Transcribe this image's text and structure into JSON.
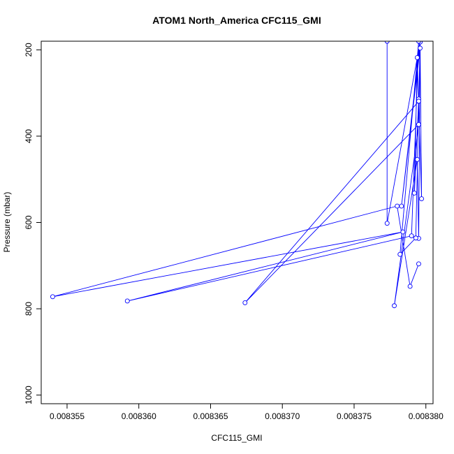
{
  "chart_data": {
    "type": "line",
    "title": "ATOM1 North_America CFC115_GMI",
    "xlabel": "CFC115_GMI",
    "ylabel": "Pressure (mbar)",
    "xlim": [
      0.0083532,
      0.0083805
    ],
    "ylim": [
      1020,
      180
    ],
    "y_reversed": true,
    "x_ticks": [
      0.008355,
      0.00836,
      0.008365,
      0.00837,
      0.008375,
      0.00838
    ],
    "x_tick_labels": [
      "0.008355",
      "0.008360",
      "0.008365",
      "0.008370",
      "0.008375",
      "0.008380"
    ],
    "y_ticks": [
      200,
      400,
      600,
      800,
      1000
    ],
    "y_tick_labels": [
      "200",
      "400",
      "600",
      "800",
      "1000"
    ],
    "grid": false,
    "series_color": "#0000ff",
    "series": [
      {
        "points": [
          {
            "x": 0.0083773,
            "y": 180
          },
          {
            "x": 0.0083773,
            "y": 602
          },
          {
            "x": 0.0083796,
            "y": 182
          },
          {
            "x": 0.0083783,
            "y": 562
          },
          {
            "x": 0.0083796,
            "y": 196
          },
          {
            "x": 0.0083797,
            "y": 545
          },
          {
            "x": 0.0083794,
            "y": 218
          },
          {
            "x": 0.0083792,
            "y": 532
          },
          {
            "x": 0.0083795,
            "y": 314
          },
          {
            "x": 0.0083795,
            "y": 319
          },
          {
            "x": 0.0083674,
            "y": 786
          },
          {
            "x": 0.0083795,
            "y": 373
          },
          {
            "x": 0.0083778,
            "y": 793
          },
          {
            "x": 0.0083794,
            "y": 454
          },
          {
            "x": 0.0083795,
            "y": 637
          },
          {
            "x": 0.0083796,
            "y": 182
          },
          {
            "x": 0.0083793,
            "y": 636
          },
          {
            "x": 0.0083782,
            "y": 674
          },
          {
            "x": 0.0083795,
            "y": 180
          },
          {
            "x": 0.008379,
            "y": 631
          },
          {
            "x": 0.0083592,
            "y": 782
          },
          {
            "x": 0.0083784,
            "y": 622
          },
          {
            "x": 0.008354,
            "y": 772
          },
          {
            "x": 0.008378,
            "y": 562
          },
          {
            "x": 0.0083789,
            "y": 748
          },
          {
            "x": 0.0083795,
            "y": 696
          }
        ]
      }
    ]
  }
}
